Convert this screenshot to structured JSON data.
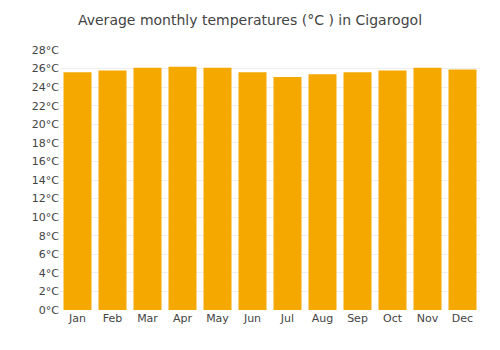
{
  "chart_data": {
    "type": "bar",
    "title": "Average monthly temperatures (°C ) in Cigarogol",
    "categories": [
      "Jan",
      "Feb",
      "Mar",
      "Apr",
      "May",
      "Jun",
      "Jul",
      "Aug",
      "Sep",
      "Oct",
      "Nov",
      "Dec"
    ],
    "values": [
      25.6,
      25.8,
      26.1,
      26.2,
      26.1,
      25.6,
      25.1,
      25.4,
      25.6,
      25.8,
      26.1,
      25.9
    ],
    "color": "#F5A800",
    "ylim": [
      0,
      28
    ],
    "yticks": [
      {
        "value": 0,
        "label": "0°C"
      },
      {
        "value": 2,
        "label": "2°C"
      },
      {
        "value": 4,
        "label": "4°C"
      },
      {
        "value": 6,
        "label": "6°C"
      },
      {
        "value": 8,
        "label": "8°C"
      },
      {
        "value": 10,
        "label": "10°C"
      },
      {
        "value": 12,
        "label": "12°C"
      },
      {
        "value": 14,
        "label": "14°C"
      },
      {
        "value": 16,
        "label": "16°C"
      },
      {
        "value": 18,
        "label": "18°C"
      },
      {
        "value": 20,
        "label": "20°C"
      },
      {
        "value": 22,
        "label": "22°C"
      },
      {
        "value": 24,
        "label": "24°C"
      },
      {
        "value": 26,
        "label": "26°C"
      },
      {
        "value": 28,
        "label": "28°C"
      }
    ],
    "grid": true
  }
}
